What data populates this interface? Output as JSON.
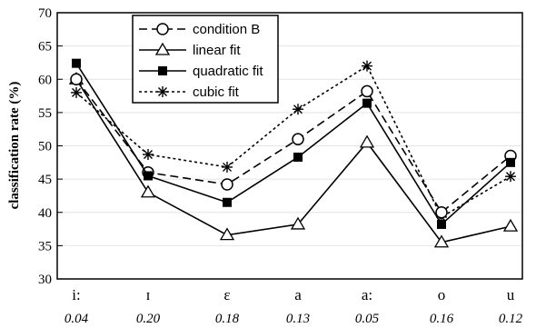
{
  "chart_data": {
    "type": "line",
    "ylabel": "classification rate (%)",
    "ylim": [
      30,
      70
    ],
    "yticks": [
      30,
      35,
      40,
      45,
      50,
      55,
      60,
      65,
      70
    ],
    "categories": [
      "i:",
      "ɪ",
      "ɛ",
      "a",
      "a:",
      "o",
      "u"
    ],
    "category_values": [
      "0.04",
      "0.20",
      "0.18",
      "0.13",
      "0.05",
      "0.16",
      "0.12"
    ],
    "grid": "horizontal",
    "legend_position": "top-left",
    "series": [
      {
        "name": "condition B",
        "values": [
          60.0,
          46.0,
          44.2,
          51.0,
          58.2,
          40.0,
          48.5
        ],
        "style": "dashed",
        "marker": "open-circle",
        "color": "#000000"
      },
      {
        "name": "linear fit",
        "values": [
          60.0,
          43.0,
          36.6,
          38.2,
          50.5,
          35.5,
          37.9
        ],
        "style": "solid",
        "marker": "open-triangle",
        "color": "#000000"
      },
      {
        "name": "quadratic fit",
        "values": [
          62.4,
          45.5,
          41.5,
          48.3,
          56.4,
          38.2,
          47.5
        ],
        "style": "solid",
        "marker": "filled-square",
        "color": "#000000"
      },
      {
        "name": "cubic fit",
        "values": [
          58.0,
          48.7,
          46.8,
          55.5,
          62.0,
          39.3,
          45.4
        ],
        "style": "dotted",
        "marker": "star",
        "color": "#000000"
      }
    ]
  }
}
